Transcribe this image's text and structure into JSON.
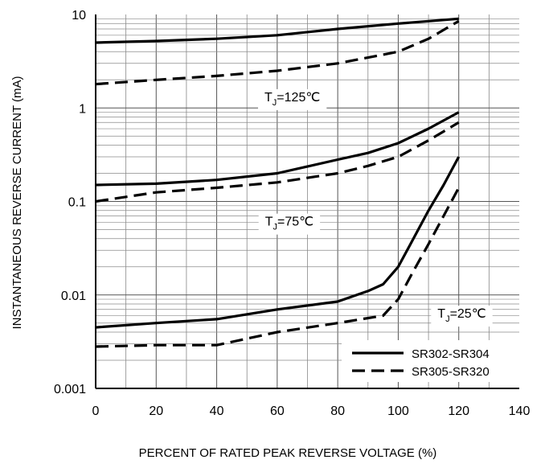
{
  "chart_data": {
    "type": "line",
    "title": "",
    "xlabel": "PERCENT OF RATED PEAK REVERSE VOLTAGE (%)",
    "ylabel": "INSTANTANEOUS REVERSE CURRENT (mA)",
    "xlim": [
      0,
      140
    ],
    "ylim": [
      0.001,
      10
    ],
    "y_scale": "log",
    "grid": true,
    "x_ticks": [
      "0",
      "20",
      "40",
      "60",
      "80",
      "100",
      "120",
      "140"
    ],
    "y_ticks": [
      "0.001",
      "0.01",
      "0.1",
      "1",
      "10"
    ],
    "legend": {
      "placement": "bottom-right",
      "entries": [
        {
          "label": "SR302-SR304",
          "style": "solid"
        },
        {
          "label": "SR305-SR320",
          "style": "dashed"
        }
      ]
    },
    "annotations": [
      {
        "base": "T",
        "sub": "J",
        "rest": "=125℃",
        "x": 65,
        "y": 1.18
      },
      {
        "base": "T",
        "sub": "J",
        "rest": "=75℃",
        "x": 64,
        "y": 0.055
      },
      {
        "base": "T",
        "sub": "J",
        "rest": "=25℃",
        "x": 121,
        "y": 0.0057
      }
    ],
    "series": [
      {
        "group": "SR302-SR304",
        "temperature": "125℃",
        "style": "solid",
        "x": [
          0,
          20,
          40,
          60,
          80,
          100,
          120
        ],
        "y": [
          5.0,
          5.2,
          5.5,
          6.0,
          7.0,
          8.0,
          9.0
        ]
      },
      {
        "group": "SR305-SR320",
        "temperature": "125℃",
        "style": "dashed",
        "x": [
          0,
          20,
          40,
          60,
          80,
          100,
          110,
          120
        ],
        "y": [
          1.8,
          2.0,
          2.2,
          2.5,
          3.0,
          4.0,
          5.5,
          8.5
        ]
      },
      {
        "group": "SR302-SR304",
        "temperature": "75℃",
        "style": "solid",
        "x": [
          0,
          20,
          40,
          60,
          80,
          90,
          100,
          110,
          120
        ],
        "y": [
          0.15,
          0.155,
          0.17,
          0.2,
          0.28,
          0.33,
          0.42,
          0.6,
          0.9
        ]
      },
      {
        "group": "SR305-SR320",
        "temperature": "75℃",
        "style": "dashed",
        "x": [
          0,
          20,
          40,
          60,
          80,
          90,
          100,
          110,
          120
        ],
        "y": [
          0.1,
          0.125,
          0.14,
          0.16,
          0.2,
          0.24,
          0.3,
          0.45,
          0.7
        ]
      },
      {
        "group": "SR302-SR304",
        "temperature": "25℃",
        "style": "solid",
        "x": [
          0,
          20,
          40,
          60,
          80,
          90,
          95,
          100,
          105,
          110,
          115,
          120
        ],
        "y": [
          0.0045,
          0.005,
          0.0055,
          0.007,
          0.0085,
          0.011,
          0.013,
          0.02,
          0.04,
          0.08,
          0.15,
          0.3
        ]
      },
      {
        "group": "SR305-SR320",
        "temperature": "25℃",
        "style": "dashed",
        "x": [
          0,
          20,
          40,
          60,
          80,
          95,
          100,
          105,
          110,
          115,
          120
        ],
        "y": [
          0.0028,
          0.0029,
          0.0029,
          0.004,
          0.005,
          0.006,
          0.009,
          0.018,
          0.035,
          0.07,
          0.14
        ]
      }
    ]
  }
}
